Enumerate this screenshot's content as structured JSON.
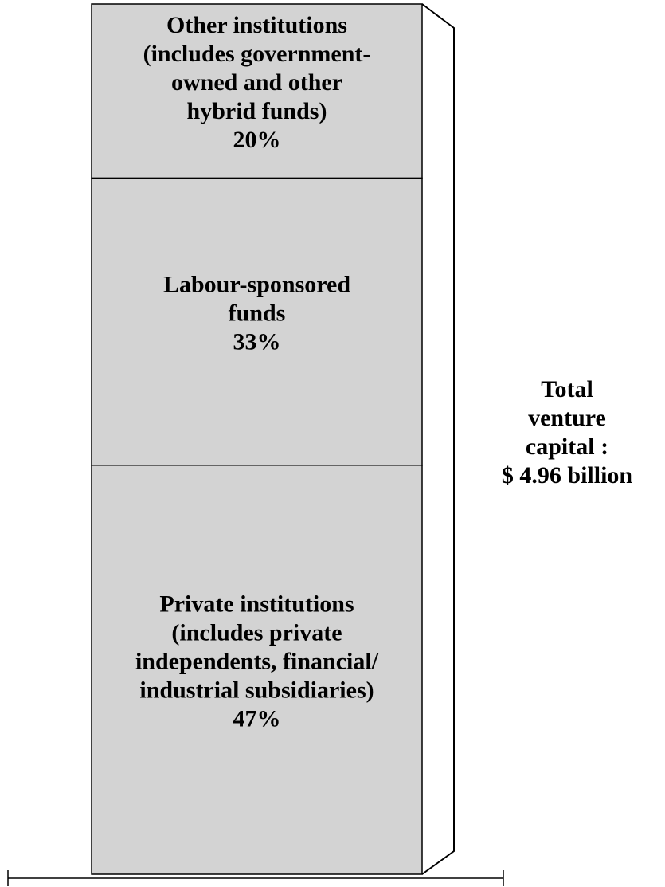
{
  "chart_data": {
    "type": "stacked_bar",
    "series": [
      {
        "name": [
          "Private institutions",
          "(includes private",
          "independents, financial/",
          "industrial subsidiaries)"
        ],
        "color": "#d3d3d3",
        "values": [
          47
        ],
        "value_labels": [
          "47%"
        ]
      },
      {
        "name": [
          "Labour-sponsored",
          "funds"
        ],
        "color": "#d3d3d3",
        "values": [
          33
        ],
        "value_labels": [
          "33%"
        ]
      },
      {
        "name": [
          "Other institutions",
          "(includes government-",
          "owned and other",
          "hybrid funds)"
        ],
        "color": "#d3d3d3",
        "values": [
          20
        ],
        "value_labels": [
          "20%"
        ]
      }
    ],
    "ylim": [
      0,
      100
    ],
    "annotation": [
      "Total",
      "venture",
      "capital :",
      "$ 4.96 billion"
    ]
  }
}
